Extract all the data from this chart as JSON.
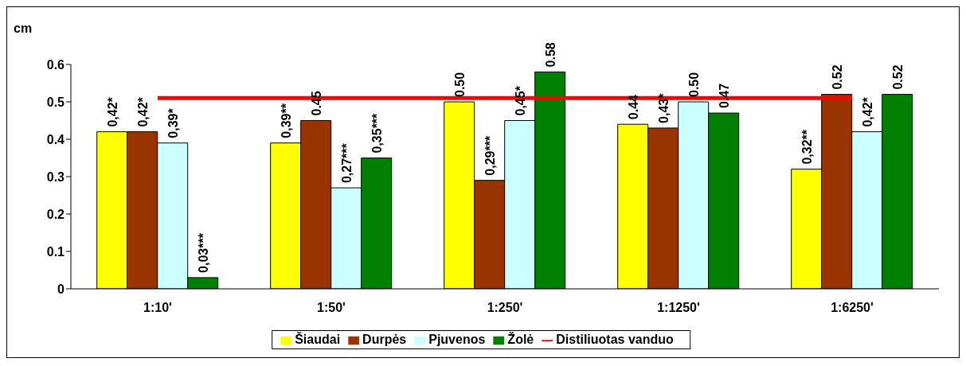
{
  "chart_data": {
    "type": "bar",
    "ylabel": "cm",
    "categories": [
      "1:10'",
      "1:50'",
      "1:250'",
      "1:1250'",
      "1:6250'"
    ],
    "ylim": [
      0,
      0.6
    ],
    "yticks": [
      0,
      0.1,
      0.2,
      0.3,
      0.4,
      0.5,
      0.6
    ],
    "grid": false,
    "legend": "bottom",
    "series": [
      {
        "name": "Šiaudai",
        "color": "#ffff00",
        "values": [
          0.42,
          0.39,
          0.5,
          0.44,
          0.32
        ],
        "value_labels": [
          "0,42*",
          "0,39**",
          "0.50",
          "0.44",
          "0,32**"
        ]
      },
      {
        "name": "Durpės",
        "color": "#993300",
        "values": [
          0.42,
          0.45,
          0.29,
          0.43,
          0.52
        ],
        "value_labels": [
          "0,42*",
          "0.45",
          "0,29***",
          "0,43*",
          "0.52"
        ]
      },
      {
        "name": "Pjuvenos",
        "color": "#ccffff",
        "values": [
          0.39,
          0.27,
          0.45,
          0.5,
          0.42
        ],
        "value_labels": [
          "0,39*",
          "0,27***",
          "0,45*",
          "0.50",
          "0,42*"
        ]
      },
      {
        "name": "Žolė",
        "color": "#008000",
        "values": [
          0.03,
          0.35,
          0.58,
          0.47,
          0.52
        ],
        "value_labels": [
          "0,03***",
          "0,35***",
          "0.58",
          "0.47",
          "0.52"
        ]
      },
      {
        "name": "Distiliuotas vanduo",
        "type": "line",
        "color": "#ff0000",
        "values": [
          0.51,
          0.51,
          0.51,
          0.51,
          0.51
        ]
      }
    ]
  }
}
